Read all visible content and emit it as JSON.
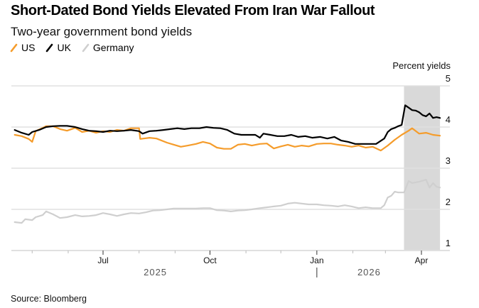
{
  "chart_data": {
    "type": "line",
    "title": "Short-Dated Bond Yields Elevated From Iran War Fallout",
    "subtitle": "Two-year government bond yields",
    "ylabel": "Percent yields",
    "xlabel": "",
    "ylim": [
      1,
      5
    ],
    "yticks": [
      1,
      2,
      3,
      4,
      5
    ],
    "xlim": [
      "2025-04-14",
      "2026-04-20"
    ],
    "xticks": [
      {
        "date": "2025-07-01",
        "label": "Jul"
      },
      {
        "date": "2025-10-01",
        "label": "Oct"
      },
      {
        "date": "2026-01-01",
        "label": "Jan"
      },
      {
        "date": "2026-04-01",
        "label": "Apr"
      }
    ],
    "minor_xticks": [
      "2025-05-01",
      "2025-06-01",
      "2025-08-01",
      "2025-09-01",
      "2025-11-01",
      "2025-12-01",
      "2026-02-01",
      "2026-03-01"
    ],
    "year_labels": [
      {
        "label": "2025",
        "date": "2025-08-15"
      },
      {
        "label": "2026",
        "date": "2026-02-15"
      }
    ],
    "year_divider": "2026-01-01",
    "grid": true,
    "legend_position": "top-left",
    "shaded_range": {
      "start": "2026-03-17",
      "end": "2026-04-17",
      "color": "#d9d9d9"
    },
    "series": [
      {
        "name": "US",
        "color": "#f59c2b",
        "x": [
          "2025-04-16",
          "2025-04-22",
          "2025-04-28",
          "2025-05-01",
          "2025-05-04",
          "2025-05-10",
          "2025-05-13",
          "2025-05-19",
          "2025-05-25",
          "2025-05-31",
          "2025-06-07",
          "2025-06-13",
          "2025-06-19",
          "2025-06-25",
          "2025-07-01",
          "2025-07-07",
          "2025-07-13",
          "2025-07-19",
          "2025-07-25",
          "2025-08-01",
          "2025-08-02",
          "2025-08-10",
          "2025-08-16",
          "2025-08-25",
          "2025-08-31",
          "2025-09-06",
          "2025-09-12",
          "2025-09-19",
          "2025-09-25",
          "2025-10-01",
          "2025-10-07",
          "2025-10-13",
          "2025-10-19",
          "2025-10-25",
          "2025-10-31",
          "2025-11-06",
          "2025-11-13",
          "2025-11-19",
          "2025-11-25",
          "2025-12-01",
          "2025-12-07",
          "2025-12-13",
          "2025-12-19",
          "2025-12-25",
          "2026-01-01",
          "2026-01-07",
          "2026-01-13",
          "2026-01-19",
          "2026-01-25",
          "2026-01-31",
          "2026-02-06",
          "2026-02-12",
          "2026-02-18",
          "2026-02-25",
          "2026-03-03",
          "2026-03-09",
          "2026-03-15",
          "2026-03-21",
          "2026-03-24",
          "2026-03-30",
          "2026-04-05",
          "2026-04-11",
          "2026-04-17"
        ],
        "y": [
          3.81,
          3.78,
          3.71,
          3.64,
          3.9,
          3.98,
          4.02,
          4.02,
          3.95,
          3.91,
          3.98,
          3.88,
          3.91,
          3.86,
          3.9,
          3.88,
          3.93,
          3.91,
          3.97,
          3.97,
          3.71,
          3.74,
          3.72,
          3.62,
          3.57,
          3.52,
          3.55,
          3.59,
          3.64,
          3.6,
          3.5,
          3.47,
          3.47,
          3.57,
          3.59,
          3.55,
          3.59,
          3.6,
          3.48,
          3.53,
          3.57,
          3.52,
          3.55,
          3.53,
          3.59,
          3.6,
          3.6,
          3.57,
          3.55,
          3.52,
          3.55,
          3.5,
          3.52,
          3.43,
          3.55,
          3.69,
          3.81,
          3.91,
          3.97,
          3.84,
          3.86,
          3.81,
          3.79
        ]
      },
      {
        "name": "UK",
        "color": "#000000",
        "x": [
          "2025-04-16",
          "2025-04-22",
          "2025-04-28",
          "2025-05-01",
          "2025-05-07",
          "2025-05-13",
          "2025-05-19",
          "2025-05-25",
          "2025-05-31",
          "2025-06-07",
          "2025-06-13",
          "2025-06-19",
          "2025-06-25",
          "2025-07-01",
          "2025-07-07",
          "2025-07-13",
          "2025-07-19",
          "2025-07-25",
          "2025-08-01",
          "2025-08-04",
          "2025-08-10",
          "2025-08-16",
          "2025-08-22",
          "2025-08-28",
          "2025-09-03",
          "2025-09-09",
          "2025-09-15",
          "2025-09-22",
          "2025-09-28",
          "2025-10-04",
          "2025-10-10",
          "2025-10-16",
          "2025-10-22",
          "2025-10-28",
          "2025-11-03",
          "2025-11-09",
          "2025-11-13",
          "2025-11-16",
          "2025-11-22",
          "2025-11-28",
          "2025-12-04",
          "2025-12-10",
          "2025-12-16",
          "2025-12-22",
          "2025-12-28",
          "2026-01-04",
          "2026-01-10",
          "2026-01-16",
          "2026-01-22",
          "2026-01-28",
          "2026-02-03",
          "2026-02-09",
          "2026-02-15",
          "2026-02-21",
          "2026-02-28",
          "2026-03-03",
          "2026-03-06",
          "2026-03-09",
          "2026-03-12",
          "2026-03-15",
          "2026-03-18",
          "2026-03-21",
          "2026-03-24",
          "2026-03-27",
          "2026-03-30",
          "2026-04-02",
          "2026-04-05",
          "2026-04-08",
          "2026-04-11",
          "2026-04-14",
          "2026-04-17"
        ],
        "y": [
          3.93,
          3.86,
          3.81,
          3.88,
          3.93,
          4.0,
          4.02,
          4.03,
          4.03,
          4.0,
          3.95,
          3.91,
          3.9,
          3.88,
          3.91,
          3.9,
          3.91,
          3.93,
          3.9,
          3.84,
          3.9,
          3.91,
          3.93,
          3.95,
          3.97,
          3.95,
          3.97,
          3.97,
          4.0,
          3.98,
          3.97,
          3.93,
          3.84,
          3.81,
          3.81,
          3.81,
          3.74,
          3.84,
          3.81,
          3.78,
          3.78,
          3.81,
          3.76,
          3.78,
          3.74,
          3.76,
          3.72,
          3.76,
          3.67,
          3.64,
          3.59,
          3.59,
          3.59,
          3.59,
          3.72,
          3.88,
          3.95,
          3.98,
          4.02,
          4.05,
          4.53,
          4.47,
          4.41,
          4.4,
          4.36,
          4.29,
          4.26,
          4.33,
          4.22,
          4.24,
          4.22
        ]
      },
      {
        "name": "Germany",
        "color": "#cfcfcf",
        "x": [
          "2025-04-16",
          "2025-04-22",
          "2025-04-25",
          "2025-05-01",
          "2025-05-04",
          "2025-05-10",
          "2025-05-13",
          "2025-05-19",
          "2025-05-25",
          "2025-05-31",
          "2025-06-07",
          "2025-06-13",
          "2025-06-19",
          "2025-06-25",
          "2025-07-01",
          "2025-07-07",
          "2025-07-13",
          "2025-07-19",
          "2025-07-25",
          "2025-08-01",
          "2025-08-07",
          "2025-08-13",
          "2025-08-19",
          "2025-08-25",
          "2025-08-31",
          "2025-09-06",
          "2025-09-12",
          "2025-09-19",
          "2025-09-25",
          "2025-10-01",
          "2025-10-07",
          "2025-10-13",
          "2025-10-19",
          "2025-10-25",
          "2025-10-31",
          "2025-11-06",
          "2025-11-13",
          "2025-11-19",
          "2025-11-25",
          "2025-12-01",
          "2025-12-07",
          "2025-12-13",
          "2025-12-19",
          "2025-12-25",
          "2026-01-01",
          "2026-01-07",
          "2026-01-13",
          "2026-01-19",
          "2026-01-25",
          "2026-01-31",
          "2026-02-06",
          "2026-02-12",
          "2026-02-18",
          "2026-02-25",
          "2026-02-28",
          "2026-03-03",
          "2026-03-06",
          "2026-03-09",
          "2026-03-12",
          "2026-03-17",
          "2026-03-21",
          "2026-03-24",
          "2026-03-30",
          "2026-04-05",
          "2026-04-08",
          "2026-04-11",
          "2026-04-14",
          "2026-04-17"
        ],
        "y": [
          1.69,
          1.67,
          1.76,
          1.74,
          1.81,
          1.86,
          1.95,
          1.88,
          1.79,
          1.81,
          1.86,
          1.83,
          1.84,
          1.86,
          1.91,
          1.88,
          1.84,
          1.88,
          1.91,
          1.9,
          1.93,
          1.97,
          1.98,
          2.0,
          2.02,
          2.02,
          2.02,
          2.02,
          2.03,
          2.03,
          1.98,
          1.97,
          1.95,
          1.97,
          1.98,
          2.0,
          2.03,
          2.05,
          2.07,
          2.09,
          2.14,
          2.16,
          2.14,
          2.12,
          2.12,
          2.1,
          2.09,
          2.07,
          2.1,
          2.07,
          2.03,
          2.05,
          2.03,
          2.03,
          2.1,
          2.29,
          2.33,
          2.43,
          2.41,
          2.41,
          2.69,
          2.64,
          2.67,
          2.72,
          2.53,
          2.64,
          2.55,
          2.53
        ]
      }
    ]
  },
  "header": {
    "title": "Short-Dated Bond Yields Elevated From Iran War Fallout",
    "subtitle": "Two-year government bond yields"
  },
  "legend": [
    {
      "label": "US",
      "color": "#f59c2b"
    },
    {
      "label": "UK",
      "color": "#000000"
    },
    {
      "label": "Germany",
      "color": "#cfcfcf"
    }
  ],
  "footer": {
    "source": "Source: Bloomberg"
  }
}
